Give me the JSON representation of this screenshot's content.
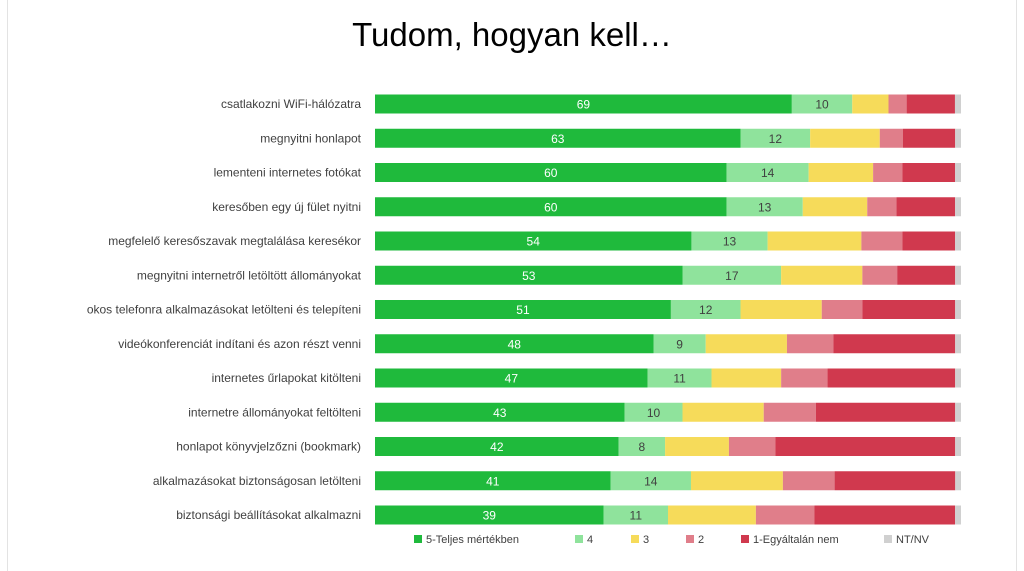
{
  "title": "Tudom, hogyan kell…",
  "chart_data": {
    "type": "bar",
    "orientation": "horizontal",
    "stacked": "100%",
    "title": "Tudom, hogyan kell…",
    "categories": [
      "csatlakozni WiFi-hálózatra",
      "megnyitni honlapot",
      "lementeni internetes fotókat",
      "keresőben egy új fület nyitni",
      "megfelelő keresőszavak megtalálása keresékor",
      "megnyitni internetről letöltött állományokat",
      "okos telefonra alkalmazásokat letölteni és telepíteni",
      "videókonferenciát indítani és azon részt venni",
      "internetes űrlapokat kitölteni",
      "internetre állományokat feltölteni",
      "honlapot könyvjelzőzni (bookmark)",
      "alkalmazásokat biztonságosan letölteni",
      "biztonsági beállításokat alkalmazni"
    ],
    "series": [
      {
        "name": "5-Teljes mértékben",
        "color": "#1fba3c",
        "label_color": "#ffffff",
        "values": [
          69,
          63,
          60,
          60,
          54,
          53,
          51,
          48,
          47,
          43,
          42,
          41,
          39
        ]
      },
      {
        "name": "4",
        "color": "#8fe39c",
        "label_color": "#404040",
        "values": [
          10,
          12,
          14,
          13,
          13,
          17,
          12,
          9,
          11,
          10,
          8,
          14,
          11
        ]
      },
      {
        "name": "3",
        "color": "#f6db5a",
        "values": [
          6,
          12,
          11,
          11,
          16,
          14,
          14,
          14,
          12,
          14,
          11,
          16,
          15
        ]
      },
      {
        "name": "2",
        "color": "#e07e8a",
        "values": [
          3,
          4,
          5,
          5,
          7,
          6,
          7,
          8,
          8,
          9,
          8,
          9,
          10
        ]
      },
      {
        "name": "1-Egyáltalán nem",
        "color": "#d0394e",
        "values": [
          8,
          9,
          9,
          10,
          9,
          10,
          16,
          21,
          22,
          24,
          31,
          21,
          24
        ]
      },
      {
        "name": "NT/NV",
        "color": "#d0d0d0",
        "values": [
          1,
          1,
          1,
          1,
          1,
          1,
          1,
          1,
          1,
          1,
          1,
          1,
          1
        ]
      }
    ],
    "xlim": [
      0,
      100
    ],
    "grid": false,
    "legend_position": "bottom"
  }
}
